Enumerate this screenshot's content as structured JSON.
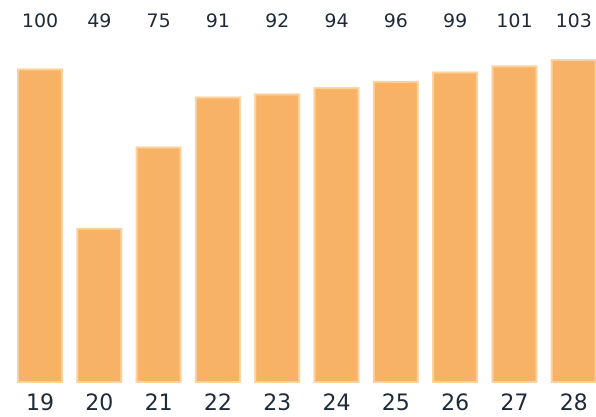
{
  "chart_data": {
    "type": "bar",
    "categories": [
      "19",
      "20",
      "21",
      "22",
      "23",
      "24",
      "25",
      "26",
      "27",
      "28"
    ],
    "values": [
      100,
      49,
      75,
      91,
      92,
      94,
      96,
      99,
      101,
      103
    ],
    "value_labels": [
      "100",
      "49",
      "75",
      "91",
      "92",
      "94",
      "96",
      "99",
      "101",
      "103"
    ],
    "title": "",
    "xlabel": "",
    "ylabel": "",
    "ylim": [
      0,
      103
    ],
    "grid": false,
    "legend": "none",
    "bar_color": "#f8b265",
    "bar_edge_color": "#fbd29f",
    "text_color": "#1f2a38"
  }
}
